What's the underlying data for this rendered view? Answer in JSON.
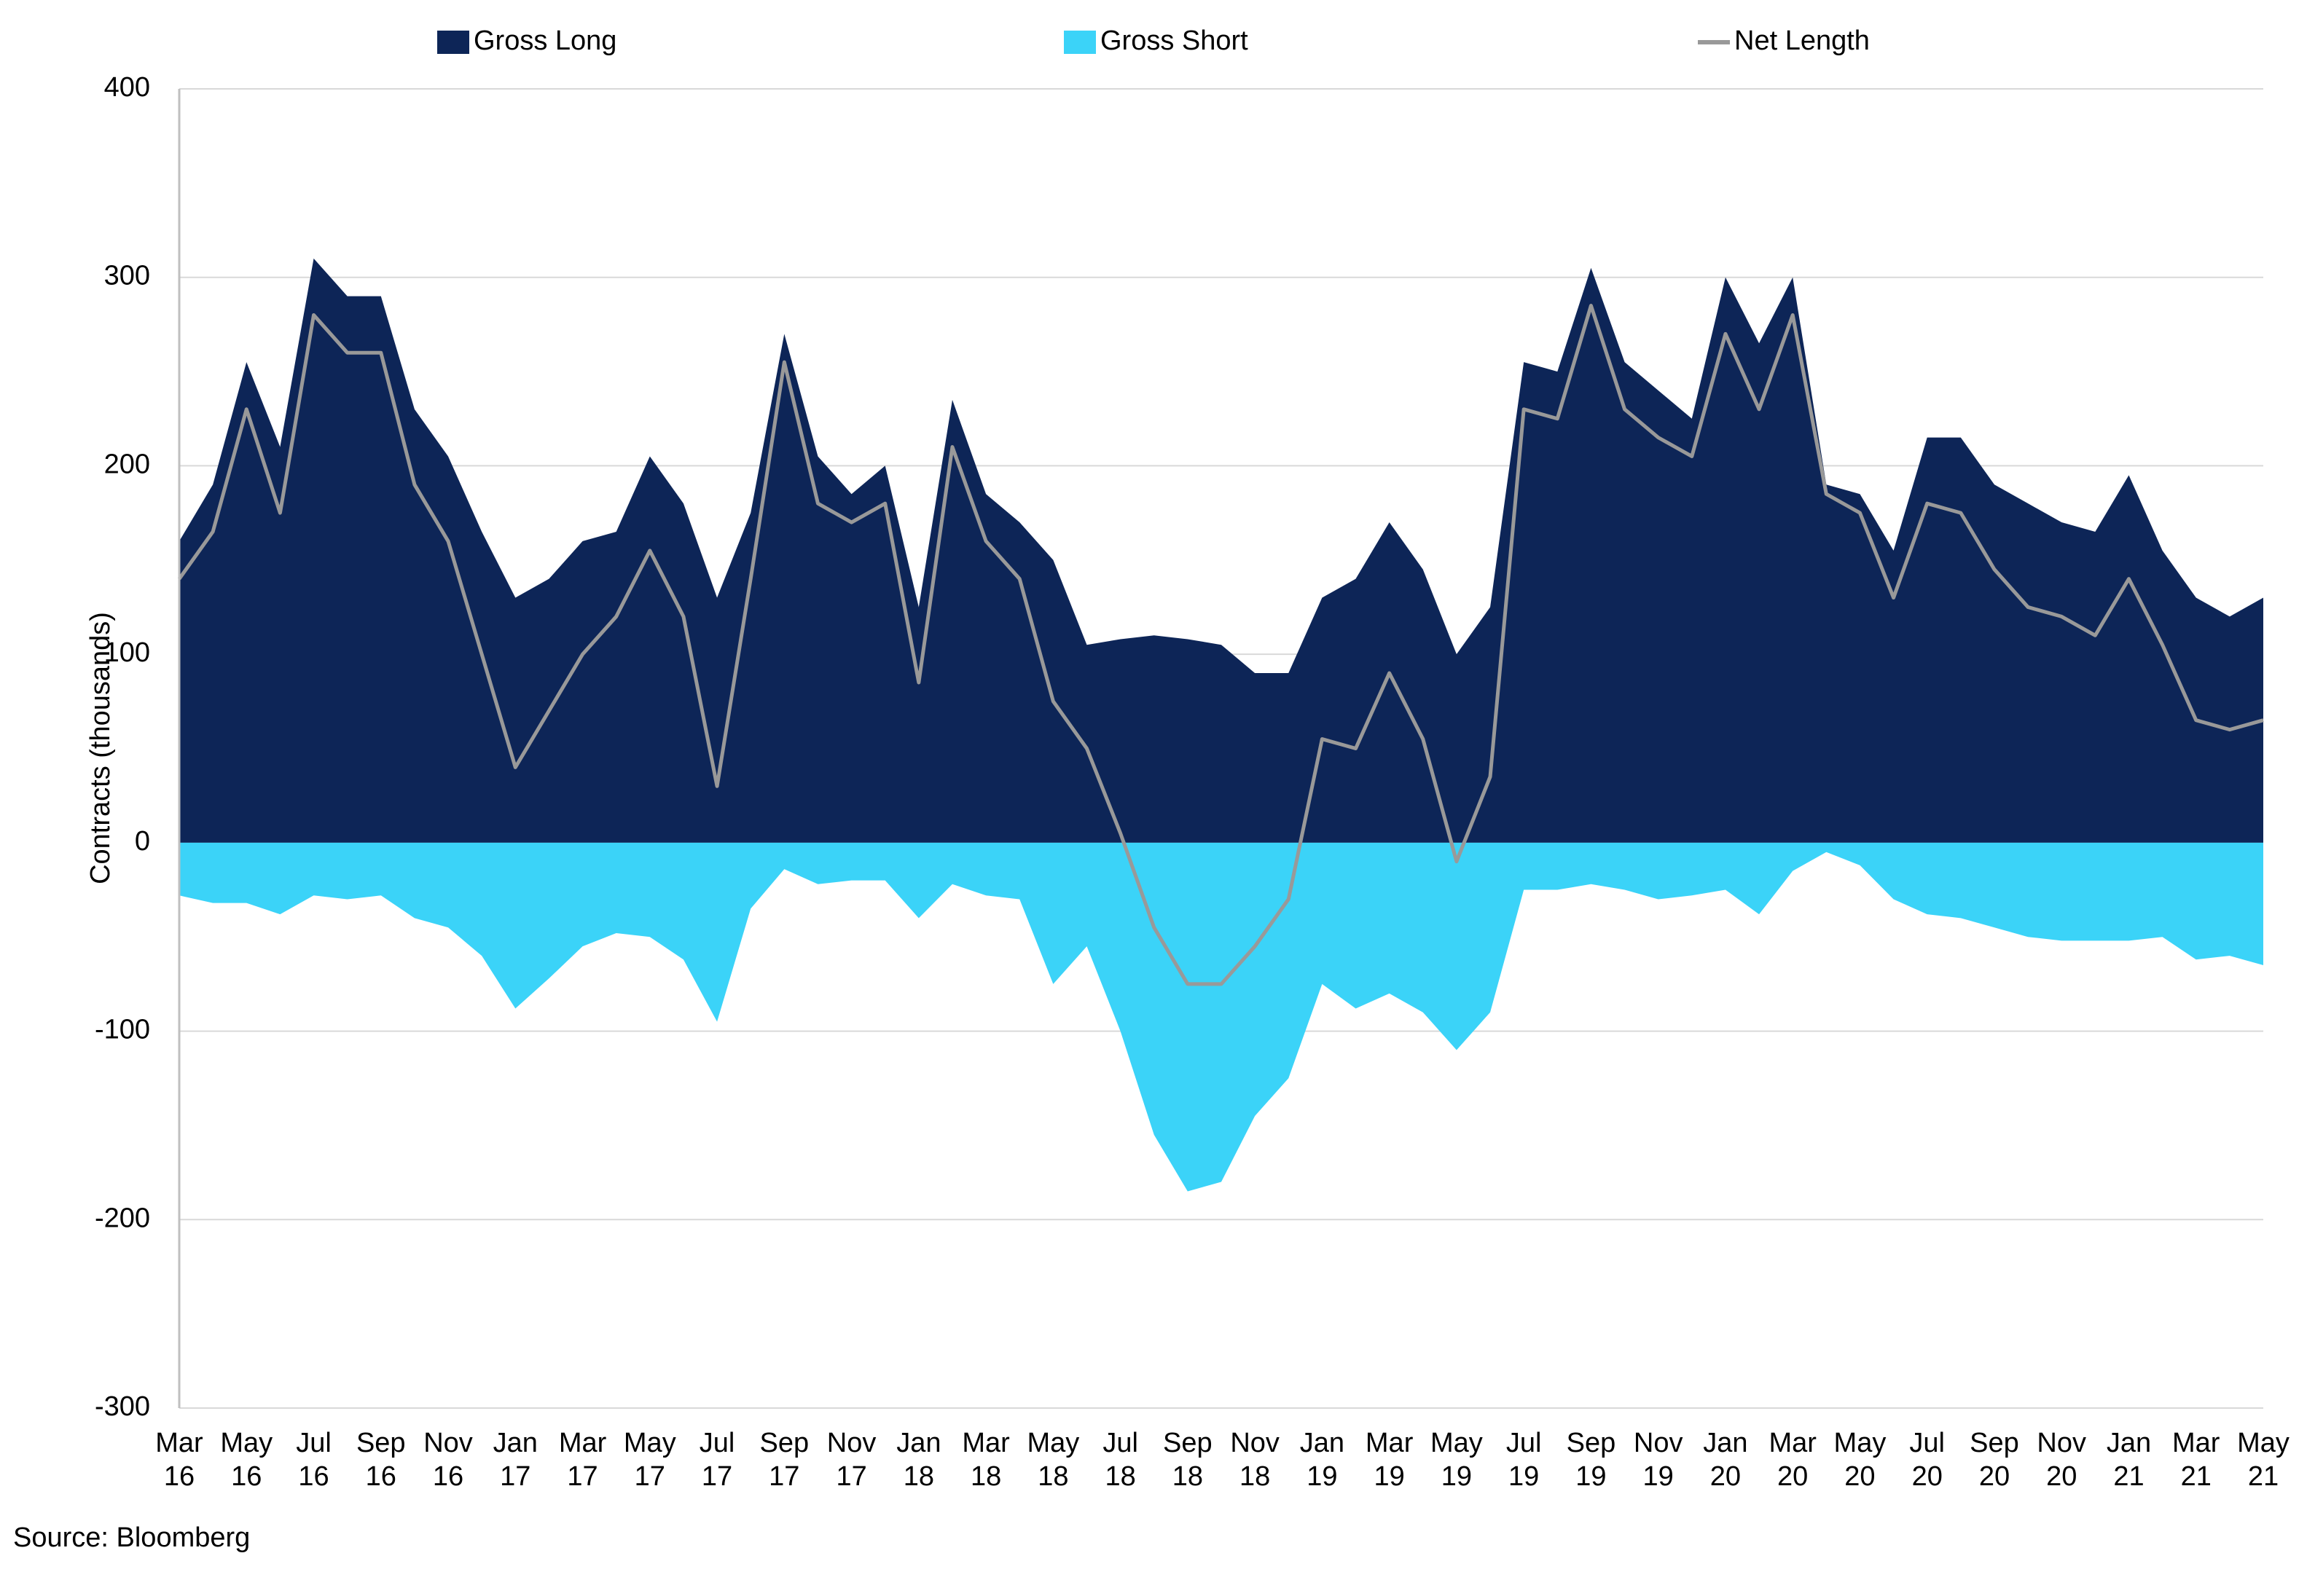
{
  "chart_data": {
    "type": "area",
    "y_label": "Contracts (thousands)",
    "source": "Source: Bloomberg",
    "categories": [
      "Mar\n16",
      null,
      "May\n16",
      null,
      "Jul\n16",
      null,
      "Sep\n16",
      null,
      "Nov\n16",
      null,
      "Jan\n17",
      null,
      "Mar\n17",
      null,
      "May\n17",
      null,
      "Jul\n17",
      null,
      "Sep\n17",
      null,
      "Nov\n17",
      null,
      "Jan\n18",
      null,
      "Mar\n18",
      null,
      "May\n18",
      null,
      "Jul\n18",
      null,
      "Sep\n18",
      null,
      "Nov\n18",
      null,
      "Jan\n19",
      null,
      "Mar\n19",
      null,
      "May\n19",
      null,
      "Jul\n19",
      null,
      "Sep\n19",
      null,
      "Nov\n19",
      null,
      "Jan\n20",
      null,
      "Mar\n20",
      null,
      "May\n20",
      null,
      "Jul\n20",
      null,
      "Sep\n20",
      null,
      "Nov\n20",
      null,
      "Jan\n21",
      null,
      "Mar\n21",
      null,
      "May\n21"
    ],
    "series": [
      {
        "name": "Gross Long",
        "color": "#0d2557",
        "kind": "area",
        "values": [
          160,
          190,
          255,
          210,
          310,
          290,
          290,
          230,
          205,
          165,
          130,
          140,
          160,
          165,
          205,
          180,
          130,
          175,
          270,
          205,
          185,
          200,
          125,
          235,
          185,
          170,
          150,
          105,
          108,
          110,
          108,
          105,
          90,
          90,
          130,
          140,
          170,
          145,
          100,
          125,
          255,
          250,
          305,
          255,
          240,
          225,
          300,
          265,
          300,
          190,
          185,
          155,
          215,
          215,
          190,
          180,
          170,
          165,
          195,
          155,
          130,
          120,
          130
        ]
      },
      {
        "name": "Gross Short",
        "color": "#3bd3f8",
        "kind": "area",
        "values": [
          -28,
          -32,
          -32,
          -38,
          -28,
          -30,
          -28,
          -40,
          -45,
          -60,
          -88,
          -72,
          -55,
          -48,
          -50,
          -62,
          -95,
          -35,
          -14,
          -22,
          -20,
          -20,
          -40,
          -22,
          -28,
          -30,
          -75,
          -55,
          -100,
          -155,
          -185,
          -180,
          -145,
          -125,
          -75,
          -88,
          -80,
          -90,
          -110,
          -90,
          -25,
          -25,
          -22,
          -25,
          -30,
          -28,
          -25,
          -38,
          -15,
          -5,
          -12,
          -30,
          -38,
          -40,
          -45,
          -50,
          -52,
          -52,
          -52,
          -50,
          -62,
          -60,
          -65
        ]
      },
      {
        "name": "Net Length",
        "color": "#999999",
        "kind": "line",
        "values": [
          140,
          165,
          230,
          175,
          280,
          260,
          260,
          190,
          160,
          100,
          40,
          70,
          100,
          120,
          155,
          120,
          30,
          140,
          255,
          180,
          170,
          180,
          85,
          210,
          160,
          140,
          75,
          50,
          5,
          -45,
          -75,
          -75,
          -55,
          -30,
          55,
          50,
          90,
          55,
          -10,
          35,
          230,
          225,
          285,
          230,
          215,
          205,
          270,
          230,
          280,
          185,
          175,
          130,
          180,
          175,
          145,
          125,
          120,
          110,
          140,
          105,
          65,
          60,
          65
        ]
      }
    ],
    "ylim": [
      -300,
      400
    ],
    "yticks": [
      -300,
      -200,
      -100,
      0,
      100,
      200,
      300,
      400
    ],
    "grid": true,
    "legend": "top"
  }
}
